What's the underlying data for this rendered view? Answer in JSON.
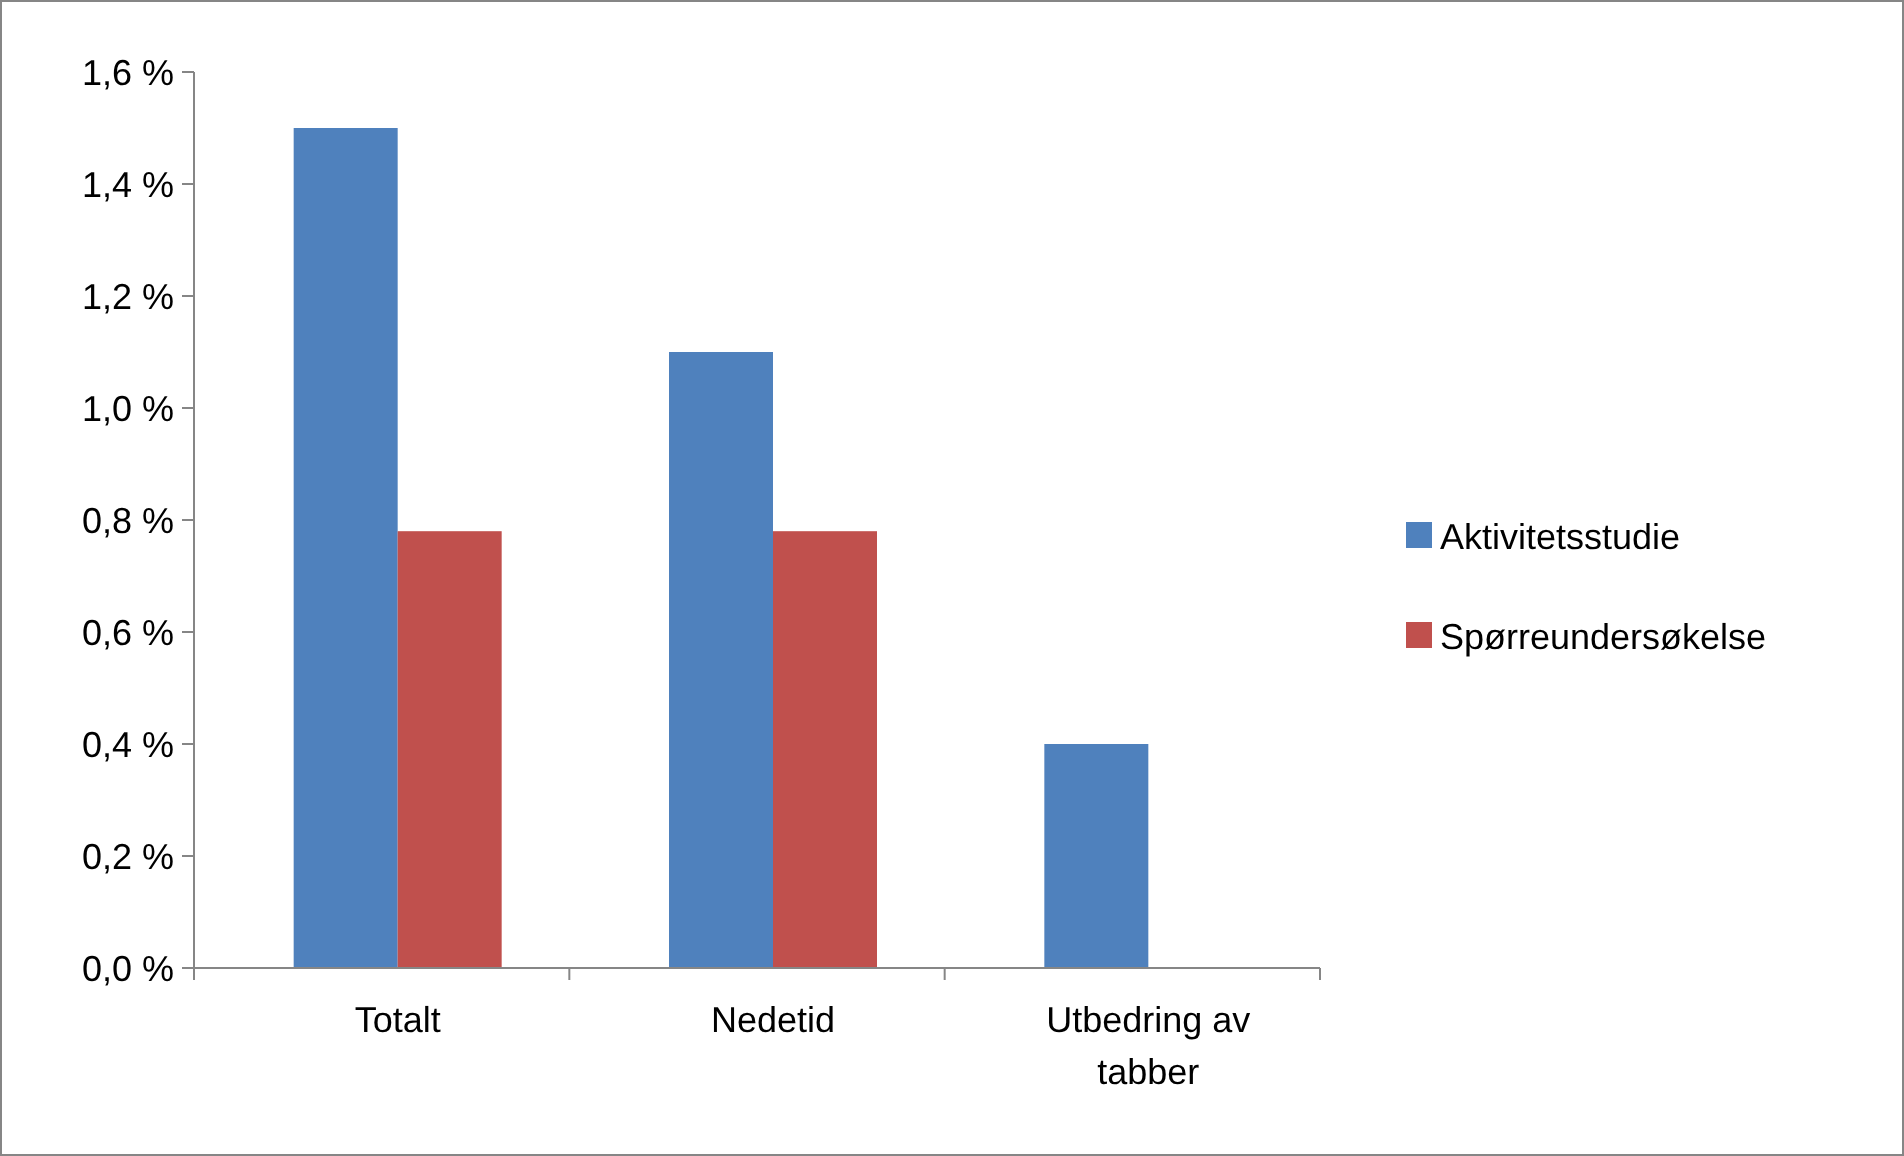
{
  "chart_data": {
    "type": "bar",
    "categories": [
      "Totalt",
      "Nedetid",
      "Utbedring av tabber"
    ],
    "series": [
      {
        "name": "Aktivitetsstudie",
        "color": "#4f81bd",
        "values": [
          1.5,
          1.1,
          0.4
        ]
      },
      {
        "name": "Spørreundersøkelse",
        "color": "#c0504d",
        "values": [
          0.78,
          0.78,
          null
        ]
      }
    ],
    "ylim": [
      0,
      1.6
    ],
    "yticks": [
      {
        "value": 0,
        "label": "0,0 %"
      },
      {
        "value": 0.2,
        "label": "0,2 %"
      },
      {
        "value": 0.4,
        "label": "0,4 %"
      },
      {
        "value": 0.6,
        "label": "0,6 %"
      },
      {
        "value": 0.8,
        "label": "0,8 %"
      },
      {
        "value": 1.0,
        "label": "1,0 %"
      },
      {
        "value": 1.2,
        "label": "1,2 %"
      },
      {
        "value": 1.4,
        "label": "1,4 %"
      },
      {
        "value": 1.6,
        "label": "1,6 %"
      }
    ],
    "grid": false,
    "legend": "right"
  }
}
